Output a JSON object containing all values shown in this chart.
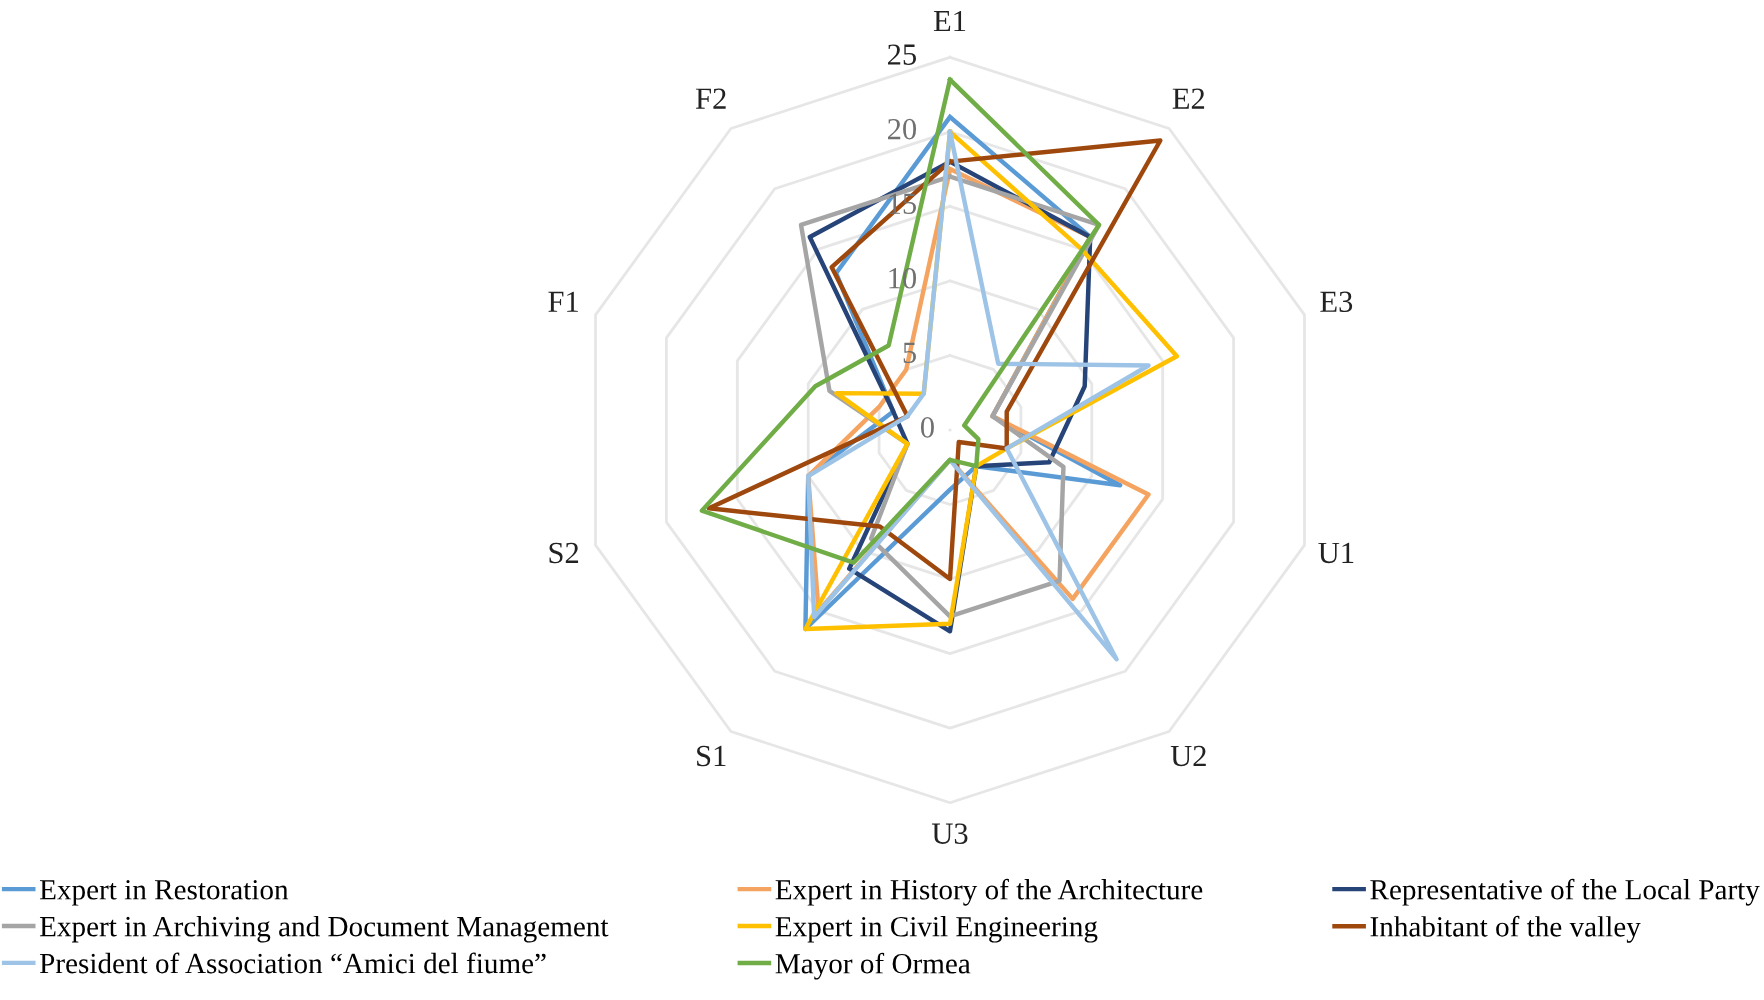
{
  "chart_data": {
    "type": "radar",
    "categories": [
      "E1",
      "E2",
      "E3",
      "U1",
      "U2",
      "U3",
      "S1",
      "S2",
      "F1",
      "F2"
    ],
    "ylim": [
      0,
      25
    ],
    "yticks": [
      0,
      5,
      10,
      15,
      20,
      25
    ],
    "grid": true,
    "legend": "bottom",
    "marker": "none",
    "line_style": "solid",
    "series": [
      {
        "name": "Expert in Restoration",
        "color": "#5b9bd5",
        "values": [
          21,
          16,
          3,
          12,
          3,
          4,
          16.5,
          10,
          4,
          13
        ]
      },
      {
        "name": "Expert in History of the Architecture",
        "color": "#f4a460",
        "values": [
          17.5,
          16,
          3,
          14,
          14,
          2,
          15,
          10,
          5,
          5
        ]
      },
      {
        "name": "Representative of the Local Party",
        "color": "#264478",
        "values": [
          18,
          16,
          9.5,
          7,
          3,
          13.5,
          11.5,
          3,
          4,
          16
        ]
      },
      {
        "name": "Expert in Archiving and Document Management",
        "color": "#a5a5a5",
        "values": [
          17,
          17,
          3,
          8,
          12.5,
          12.5,
          9,
          3,
          8.5,
          17
        ]
      },
      {
        "name": "Expert in Civil Engineering",
        "color": "#ffc000",
        "values": [
          20,
          15,
          16,
          4,
          3,
          13,
          16.5,
          3,
          8,
          3
        ]
      },
      {
        "name": "Inhabitant of the valley",
        "color": "#9e480e",
        "values": [
          18,
          24,
          4,
          4,
          1,
          10,
          8,
          17,
          3,
          13.5
        ]
      },
      {
        "name": "President of Association “Amici del fiume”",
        "color": "#9dc3e6",
        "values": [
          20,
          5.5,
          14,
          4,
          19,
          2,
          15.5,
          10,
          3,
          3
        ]
      },
      {
        "name": "Mayor of Ormea",
        "color": "#70ad47",
        "values": [
          23.5,
          17,
          1,
          2,
          3,
          2,
          11,
          17.5,
          9.5,
          7
        ]
      }
    ]
  }
}
